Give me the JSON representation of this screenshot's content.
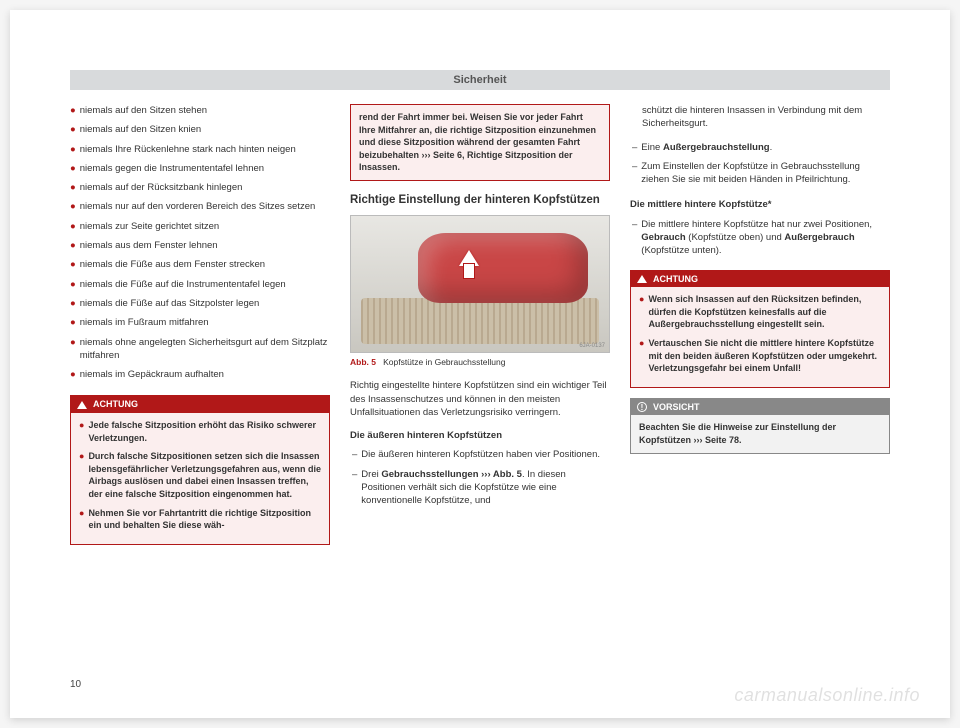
{
  "header": {
    "title": "Sicherheit"
  },
  "col1": {
    "bullets": [
      "niemals auf den Sitzen stehen",
      "niemals auf den Sitzen knien",
      "niemals Ihre Rückenlehne stark nach hinten neigen",
      "niemals gegen die Instrumententafel lehnen",
      "niemals auf der Rücksitzbank hinlegen",
      "niemals nur auf den vorderen Bereich des Sitzes setzen",
      "niemals zur Seite gerichtet sitzen",
      "niemals aus dem Fenster lehnen",
      "niemals die Füße aus dem Fenster strecken",
      "niemals die Füße auf die Instrumententafel legen",
      "niemals die Füße auf das Sitzpolster legen",
      "niemals im Fußraum mitfahren",
      "niemals ohne angelegten Sicherheitsgurt auf dem Sitzplatz mitfahren",
      "niemals im Gepäckraum aufhalten"
    ],
    "warn": {
      "label": "ACHTUNG",
      "items": [
        "Jede falsche Sitzposition erhöht das Risiko schwerer Verletzungen.",
        "Durch falsche Sitzpositionen setzen sich die Insassen lebensgefährlicher Verletzungsgefahren aus, wenn die Airbags auslösen und dabei einen Insassen treffen, der eine falsche Sitzposition eingenommen hat.",
        "Nehmen Sie vor Fahrtantritt die richtige Sitzposition ein und behalten Sie diese wäh-"
      ]
    }
  },
  "col2": {
    "cont": "rend der Fahrt immer bei. Weisen Sie vor jeder Fahrt Ihre Mitfahrer an, die richtige Sitzposition einzunehmen und diese Sitzposition während der gesamten Fahrt beizubehalten ››› Seite 6, Richtige Sitzposition der Insassen.",
    "section_title": "Richtige Einstellung der hinteren Kopfstützen",
    "fig_id": "6JA-0137",
    "caption_ref": "Abb. 5",
    "caption_text": "Kopfstütze in Gebrauchsstellung",
    "para1": "Richtig eingestellte hintere Kopfstützen sind ein wichtiger Teil des Insassenschutzes und können in den meisten Unfallsituationen das Verletzungsrisiko verringern.",
    "sub1": "Die äußeren hinteren Kopfstützen",
    "d1": "Die äußeren hinteren Kopfstützen haben vier Positionen.",
    "d2a": "Drei ",
    "d2b": "Gebrauchsstellungen ››› Abb. 5",
    "d2c": ". In diesen Positionen verhält sich die Kopfstütze wie eine konventionelle Kopfstütze, und"
  },
  "col3": {
    "cont1": "schützt die hinteren Insassen in Verbindung mit dem Sicherheitsgurt.",
    "d1a": "Eine ",
    "d1b": "Außergebrauchstellung",
    "d1c": ".",
    "d2": "Zum Einstellen der Kopfstütze in Gebrauchsstellung ziehen Sie sie mit beiden Händen in Pfeilrichtung.",
    "sub2": "Die mittlere hintere Kopfstütze*",
    "d3a": "Die mittlere hintere Kopfstütze hat nur zwei Positionen, ",
    "d3b": "Gebrauch",
    "d3c": " (Kopfstütze oben) und ",
    "d3d": "Außergebrauch",
    "d3e": " (Kopfstütze unten).",
    "warn": {
      "label": "ACHTUNG",
      "items": [
        "Wenn sich Insassen auf den Rücksitzen befinden, dürfen die Kopfstützen keinesfalls auf die Außergebrauchsstellung eingestellt sein.",
        "Vertauschen Sie nicht die mittlere hintere Kopfstütze mit den beiden äußeren Kopfstützen oder umgekehrt. Verletzungsgefahr bei einem Unfall!"
      ]
    },
    "notice": {
      "label": "VORSICHT",
      "text": "Beachten Sie die Hinweise zur Einstellung der Kopfstützen ››› Seite 78."
    }
  },
  "page_number": "10",
  "watermark": "carmanualsonline.info"
}
